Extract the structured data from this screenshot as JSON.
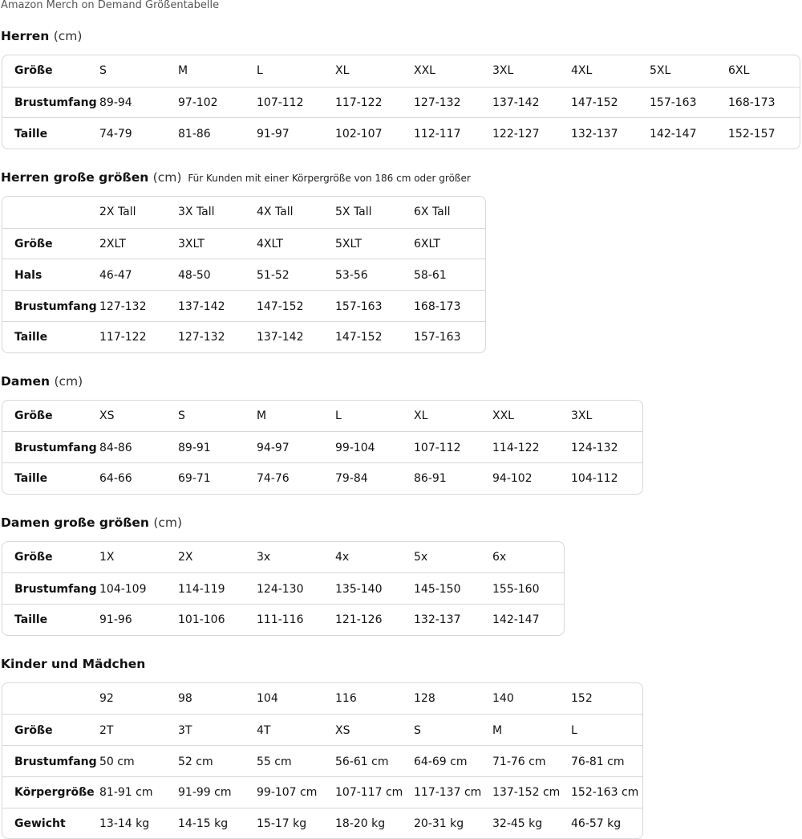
{
  "title": "Amazon Merch on Demand Größentabelle",
  "sections": [
    {
      "title": "Herren",
      "unit": "(cm)",
      "table": {
        "rows": [
          {
            "label": "Größe",
            "cells": [
              "S",
              "M",
              "L",
              "XL",
              "XXL",
              "3XL",
              "4XL",
              "5XL",
              "6XL"
            ]
          },
          {
            "label": "Brustumfang",
            "cells": [
              "89-94",
              "97-102",
              "107-112",
              "117-122",
              "127-132",
              "137-142",
              "147-152",
              "157-163",
              "168-173"
            ]
          },
          {
            "label": "Taille",
            "cells": [
              "74-79",
              "81-86",
              "91-97",
              "102-107",
              "112-117",
              "122-127",
              "132-137",
              "142-147",
              "152-157"
            ]
          }
        ]
      }
    },
    {
      "title": "Herren große größen",
      "unit": "(cm)",
      "note": "Für Kunden mit einer Körpergröße von 186 cm oder größer",
      "table": {
        "rows": [
          {
            "cells": [
              "2X Tall",
              "3X Tall",
              "4X Tall",
              "5X Tall",
              "6X Tall"
            ]
          },
          {
            "label": "Größe",
            "cells": [
              "2XLT",
              "3XLT",
              "4XLT",
              "5XLT",
              "6XLT"
            ]
          },
          {
            "label": "Hals",
            "cells": [
              "46-47",
              "48-50",
              "51-52",
              "53-56",
              "58-61"
            ]
          },
          {
            "label": "Brustumfang",
            "cells": [
              "127-132",
              "137-142",
              "147-152",
              "157-163",
              "168-173"
            ]
          },
          {
            "label": "Taille",
            "cells": [
              "117-122",
              "127-132",
              "137-142",
              "147-152",
              "157-163"
            ]
          }
        ]
      }
    },
    {
      "title": "Damen",
      "unit": "(cm)",
      "table": {
        "rows": [
          {
            "label": "Größe",
            "cells": [
              "XS",
              "S",
              "M",
              "L",
              "XL",
              "XXL",
              "3XL"
            ]
          },
          {
            "label": "Brustumfang",
            "cells": [
              "84-86",
              "89-91",
              "94-97",
              "99-104",
              "107-112",
              "114-122",
              "124-132"
            ]
          },
          {
            "label": "Taille",
            "cells": [
              "64-66",
              "69-71",
              "74-76",
              "79-84",
              "86-91",
              "94-102",
              "104-112"
            ]
          }
        ]
      }
    },
    {
      "title": "Damen große größen",
      "unit": "(cm)",
      "table": {
        "rows": [
          {
            "label": "Größe",
            "cells": [
              "1X",
              "2X",
              "3x",
              "4x",
              "5x",
              "6x"
            ]
          },
          {
            "label": "Brustumfang",
            "cells": [
              "104-109",
              "114-119",
              "124-130",
              "135-140",
              "145-150",
              "155-160"
            ]
          },
          {
            "label": "Taille",
            "cells": [
              "91-96",
              "101-106",
              "111-116",
              "121-126",
              "132-137",
              "142-147"
            ]
          }
        ]
      }
    },
    {
      "title": "Kinder und Mädchen",
      "table": {
        "rows": [
          {
            "cells": [
              "92",
              "98",
              "104",
              "116",
              "128",
              "140",
              "152"
            ]
          },
          {
            "label": "Größe",
            "cells": [
              "2T",
              "3T",
              "4T",
              "XS",
              "S",
              "M",
              "L"
            ]
          },
          {
            "label": "Brustumfang",
            "cells": [
              "50 cm",
              "52 cm",
              "55 cm",
              "56-61 cm",
              "64-69 cm",
              "71-76 cm",
              "76-81 cm"
            ]
          },
          {
            "label": "Körpergröße",
            "cells": [
              "81-91 cm",
              "91-99 cm",
              "99-107 cm",
              "107-117 cm",
              "117-137 cm",
              "137-152 cm",
              "152-163 cm"
            ]
          },
          {
            "label": "Gewicht",
            "cells": [
              "13-14 kg",
              "14-15 kg",
              "15-17 kg",
              "18-20 kg",
              "20-31 kg",
              "32-45 kg",
              "46-57 kg"
            ]
          }
        ]
      }
    }
  ]
}
